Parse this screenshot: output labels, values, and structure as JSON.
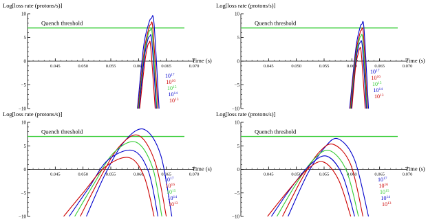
{
  "chart_data": [
    {
      "type": "line",
      "ylabel": "Log[loss rate (protons/s)]",
      "xlabel": "Time (s)",
      "xlim": [
        0.04,
        0.07
      ],
      "ylim": [
        -10,
        10
      ],
      "x_ticks": [
        "0.045",
        "0.050",
        "0.055",
        "0.060",
        "0.065",
        "0.070"
      ],
      "y_ticks": [
        "−10",
        "−5",
        "0",
        "5",
        "10"
      ],
      "threshold": {
        "label": "Quench threshold",
        "value": 7.0,
        "color": "#33cc33"
      },
      "series": [
        {
          "name": "10^17",
          "base": "10",
          "exp": "17",
          "color": "#0000cc",
          "x": [
            0.0598,
            0.0609,
            0.0618,
            0.0623,
            0.0628,
            0.0637
          ],
          "y": [
            -10,
            3.0,
            7.8,
            9.0,
            7.8,
            -10
          ]
        },
        {
          "name": "10^16",
          "base": "10",
          "exp": "16",
          "color": "#cc0000",
          "x": [
            0.0599,
            0.061,
            0.0618,
            0.0622,
            0.0626,
            0.0635
          ],
          "y": [
            -10,
            2.0,
            6.7,
            7.7,
            6.6,
            -10
          ]
        },
        {
          "name": "10^15",
          "base": "10",
          "exp": "15",
          "color": "#33cc33",
          "x": [
            0.06,
            0.061,
            0.0617,
            0.0621,
            0.0625,
            0.0633
          ],
          "y": [
            -10,
            1.2,
            5.5,
            6.5,
            5.4,
            -10
          ]
        },
        {
          "name": "10^14",
          "base": "10",
          "exp": "14",
          "color": "#0000cc",
          "x": [
            0.0601,
            0.061,
            0.0616,
            0.062,
            0.0624,
            0.0632
          ],
          "y": [
            -10,
            0.3,
            4.2,
            5.2,
            4.1,
            -10
          ]
        },
        {
          "name": "10^13",
          "base": "10",
          "exp": "13",
          "color": "#cc0000",
          "x": [
            0.0602,
            0.0611,
            0.0616,
            0.0619,
            0.0622,
            0.063
          ],
          "y": [
            -10,
            -0.5,
            3.0,
            3.8,
            2.9,
            -10
          ]
        }
      ]
    },
    {
      "type": "line",
      "ylabel": "Log[loss rate (protons/s)]",
      "xlabel": "Time (s)",
      "xlim": [
        0.04,
        0.07
      ],
      "ylim": [
        -10,
        10
      ],
      "x_ticks": [
        "0.045",
        "0.050",
        "0.055",
        "0.060",
        "0.065",
        "0.070"
      ],
      "y_ticks": [
        "−10",
        "−5",
        "0",
        "5",
        "10"
      ],
      "threshold": {
        "label": "Quench threshold",
        "value": 7.0,
        "color": "#33cc33"
      },
      "series": [
        {
          "name": "10^17",
          "base": "10",
          "exp": "17",
          "color": "#0000cc",
          "x": [
            0.0596,
            0.0607,
            0.0614,
            0.0618,
            0.0622,
            0.063
          ],
          "y": [
            -10,
            2.5,
            6.8,
            7.8,
            6.7,
            -10
          ]
        },
        {
          "name": "10^16",
          "base": "10",
          "exp": "16",
          "color": "#cc0000",
          "x": [
            0.0597,
            0.0607,
            0.0614,
            0.0617,
            0.0621,
            0.0628
          ],
          "y": [
            -10,
            1.5,
            5.6,
            6.5,
            5.5,
            -10
          ]
        },
        {
          "name": "10^15",
          "base": "10",
          "exp": "15",
          "color": "#33cc33",
          "x": [
            0.0598,
            0.0607,
            0.0613,
            0.0616,
            0.062,
            0.0627
          ],
          "y": [
            -10,
            0.7,
            4.3,
            5.2,
            4.2,
            -10
          ]
        },
        {
          "name": "10^14",
          "base": "10",
          "exp": "14",
          "color": "#0000cc",
          "x": [
            0.0599,
            0.0607,
            0.0612,
            0.0615,
            0.0619,
            0.0626
          ],
          "y": [
            -10,
            -0.2,
            3.1,
            3.9,
            3.0,
            -10
          ]
        },
        {
          "name": "10^13",
          "base": "10",
          "exp": "13",
          "color": "#cc0000",
          "x": [
            0.06,
            0.0607,
            0.0612,
            0.0614,
            0.0617,
            0.0624
          ],
          "y": [
            -10,
            -1.0,
            1.8,
            2.6,
            1.7,
            -10
          ]
        }
      ]
    },
    {
      "type": "line",
      "ylabel": "Log[loss rate (protons/s)]",
      "xlabel": "Time (s)",
      "xlim": [
        0.04,
        0.07
      ],
      "ylim": [
        -10,
        10
      ],
      "x_ticks": [
        "0.045",
        "0.050",
        "0.055",
        "0.060",
        "0.065",
        "0.070"
      ],
      "y_ticks": [
        "−10",
        "−5",
        "0",
        "5",
        "10"
      ],
      "threshold": {
        "label": "Quench threshold",
        "value": 7.0,
        "color": "#33cc33"
      },
      "series": [
        {
          "name": "10^17",
          "base": "10",
          "exp": "17",
          "color": "#0000cc",
          "x": [
            0.0506,
            0.054,
            0.0575,
            0.061,
            0.064,
            0.066
          ],
          "y": [
            -10,
            -1.0,
            6.0,
            8.5,
            3.0,
            -10
          ]
        },
        {
          "name": "10^16",
          "base": "10",
          "exp": "16",
          "color": "#cc0000",
          "x": [
            0.0495,
            0.053,
            0.0565,
            0.06,
            0.063,
            0.065
          ],
          "y": [
            -10,
            -2.0,
            4.8,
            7.2,
            1.5,
            -10
          ]
        },
        {
          "name": "10^15",
          "base": "10",
          "exp": "15",
          "color": "#33cc33",
          "x": [
            0.0485,
            0.052,
            0.0555,
            0.0595,
            0.0625,
            0.0642
          ],
          "y": [
            -10,
            -3.0,
            3.5,
            5.8,
            0.5,
            -10
          ]
        },
        {
          "name": "10^14",
          "base": "10",
          "exp": "14",
          "color": "#0000cc",
          "x": [
            0.0475,
            0.051,
            0.0545,
            0.059,
            0.0618,
            0.0635
          ],
          "y": [
            -10,
            -4.0,
            2.0,
            4.0,
            -0.5,
            -10
          ]
        },
        {
          "name": "10^13",
          "base": "10",
          "exp": "13",
          "color": "#cc0000",
          "x": [
            0.0465,
            0.05,
            0.054,
            0.0583,
            0.061,
            0.0628
          ],
          "y": [
            -10,
            -5.0,
            0.5,
            2.5,
            -1.5,
            -10
          ]
        }
      ]
    },
    {
      "type": "line",
      "ylabel": "Log[loss rate (protons/s)]",
      "xlabel": "Time (s)",
      "xlim": [
        0.04,
        0.07
      ],
      "ylim": [
        -10,
        10
      ],
      "x_ticks": [
        "0.045",
        "0.050",
        "0.055",
        "0.060",
        "0.065",
        "0.070"
      ],
      "y_ticks": [
        "−10",
        "−5",
        "0",
        "5",
        "10"
      ],
      "threshold": {
        "label": "Quench threshold",
        "value": 7.0,
        "color": "#33cc33"
      },
      "series": [
        {
          "name": "10^17",
          "base": "10",
          "exp": "17",
          "color": "#0000cc",
          "x": [
            0.0485,
            0.052,
            0.055,
            0.0575,
            0.0605,
            0.063
          ],
          "y": [
            -10,
            -1.0,
            4.5,
            6.5,
            2.0,
            -10
          ]
        },
        {
          "name": "10^16",
          "base": "10",
          "exp": "16",
          "color": "#cc0000",
          "x": [
            0.0475,
            0.051,
            0.054,
            0.0567,
            0.0598,
            0.062
          ],
          "y": [
            -10,
            -2.0,
            3.5,
            5.3,
            1.0,
            -10
          ]
        },
        {
          "name": "10^15",
          "base": "10",
          "exp": "15",
          "color": "#33cc33",
          "x": [
            0.0465,
            0.05,
            0.0532,
            0.056,
            0.059,
            0.0612
          ],
          "y": [
            -10,
            -3.0,
            2.2,
            4.0,
            -0.2,
            -10
          ]
        },
        {
          "name": "10^14",
          "base": "10",
          "exp": "14",
          "color": "#0000cc",
          "x": [
            0.0455,
            0.049,
            0.0525,
            0.0555,
            0.0583,
            0.0605
          ],
          "y": [
            -10,
            -4.0,
            1.0,
            2.8,
            -1.2,
            -10
          ]
        },
        {
          "name": "10^13",
          "base": "10",
          "exp": "13",
          "color": "#cc0000",
          "x": [
            0.0448,
            0.0482,
            0.0518,
            0.0548,
            0.0576,
            0.0598
          ],
          "y": [
            -10,
            -5.0,
            -0.2,
            1.6,
            -2.2,
            -10
          ]
        }
      ]
    }
  ]
}
